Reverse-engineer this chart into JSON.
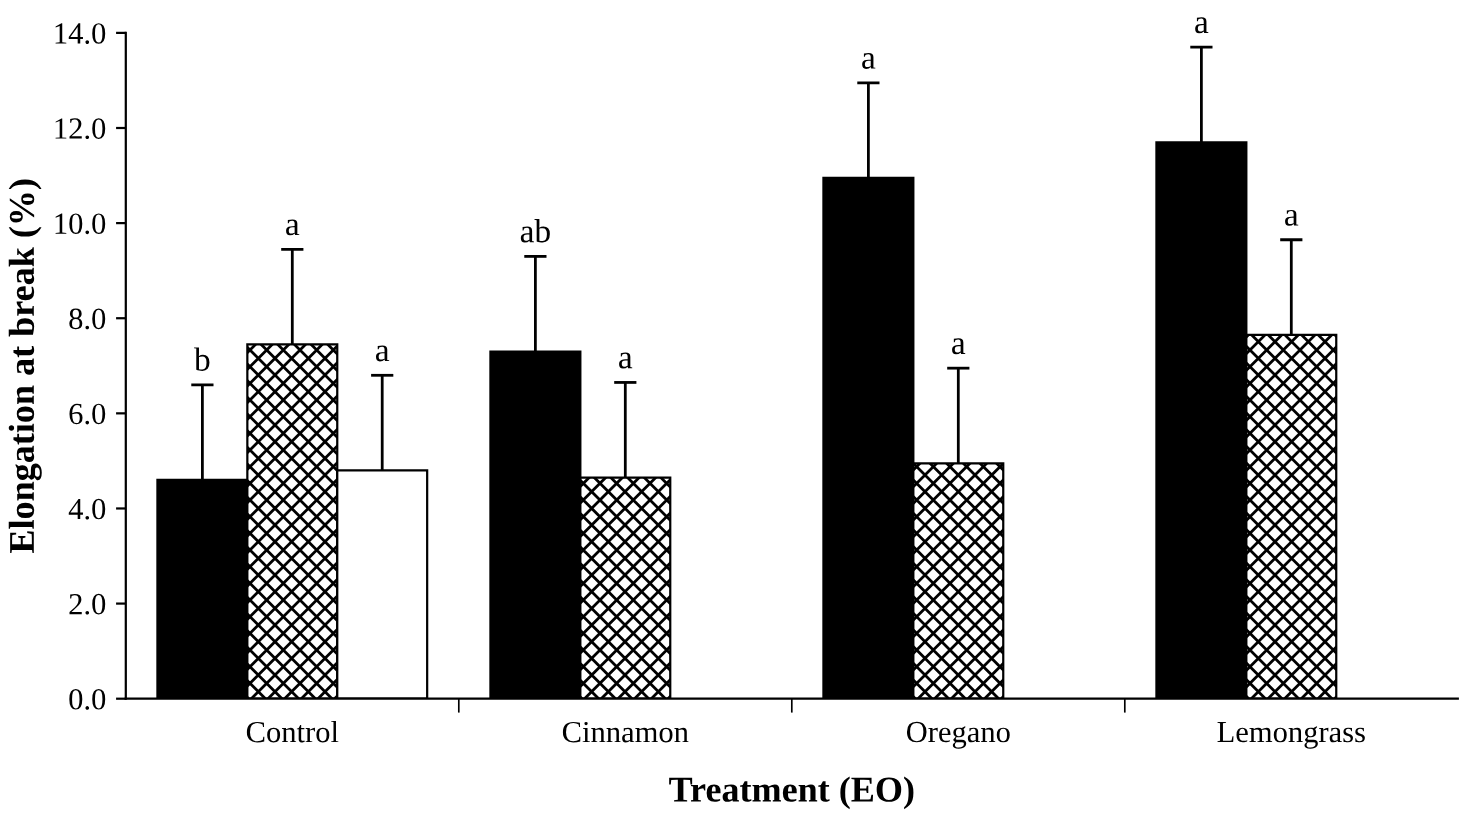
{
  "chart_data": {
    "type": "bar",
    "xlabel": "Treatment (EO)",
    "ylabel": "Elongation at break (%)",
    "categories": [
      "Control",
      "Cinnamon",
      "Oregano",
      "Lemongrass"
    ],
    "series": [
      {
        "color": "#000000",
        "values": [
          4.6,
          7.3,
          10.95,
          11.7
        ],
        "errors": [
          2.0,
          2.0,
          2.0,
          2.0
        ]
      },
      {
        "color": "#000000",
        "values": [
          7.45,
          4.65,
          4.95,
          7.65
        ],
        "errors": [
          2.0,
          2.0,
          2.0,
          2.0
        ]
      },
      {
        "color": "#ffffff",
        "values": [
          4.8,
          null,
          null,
          null
        ],
        "errors": [
          2.0,
          null,
          null,
          null
        ]
      }
    ],
    "ylim": [
      0,
      14
    ],
    "yticks": [
      {
        "value": 0,
        "label": "0.0"
      },
      {
        "value": 2,
        "label": "2.0"
      },
      {
        "value": 4,
        "label": "4.0"
      },
      {
        "value": 6,
        "label": "6.0"
      },
      {
        "value": 8,
        "label": "8.0"
      },
      {
        "value": 10,
        "label": "10.0"
      },
      {
        "value": 12,
        "label": "12.0"
      },
      {
        "value": 14,
        "label": "14.0"
      }
    ],
    "annotations": [
      "b",
      "a",
      "a",
      "ab",
      "a",
      "a",
      "a",
      "a",
      "a"
    ],
    "grid": false,
    "legend": false
  }
}
